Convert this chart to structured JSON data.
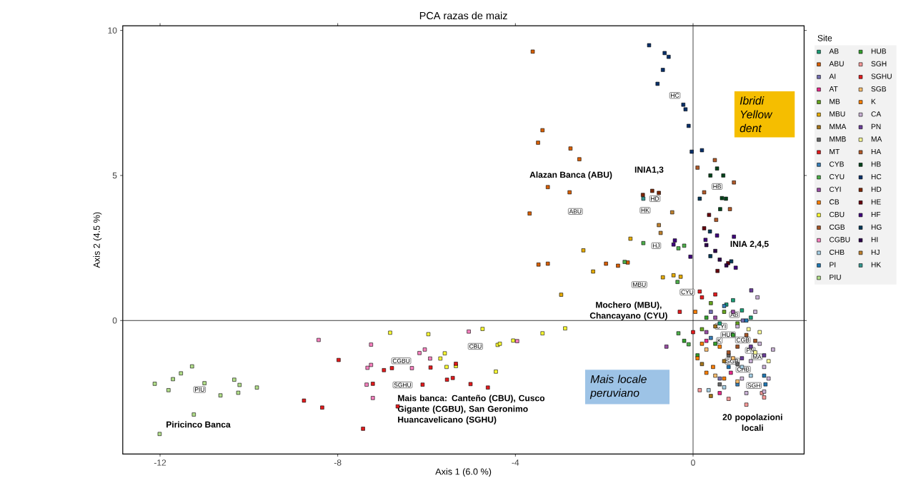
{
  "chart_data": {
    "type": "scatter",
    "title": "PCA razas de maiz",
    "xlabel": "Axis 1 (6.0 %)",
    "ylabel": "Axis 2 (4.5 %)",
    "legend_title": "Site",
    "legend": "right",
    "marker": "square",
    "xlim": [
      -12.84,
      2.5
    ],
    "ylim": [
      -4.6,
      10.16
    ],
    "xticks": [
      -12,
      -8,
      -4,
      0
    ],
    "yticks": [
      0,
      5,
      10
    ],
    "ref_lines": [
      {
        "axis": "x",
        "value": 0
      },
      {
        "axis": "y",
        "value": 0
      }
    ],
    "series": [
      {
        "name": "AB",
        "color": "#1b9e77",
        "x": [
          0.75,
          1.1,
          0.6,
          1.3,
          0.9
        ],
        "values": [
          0.55,
          0.35,
          -0.1,
          0.1,
          0.7
        ]
      },
      {
        "name": "ABU",
        "color": "#d95f02",
        "x": [
          -3.61,
          -3.39,
          -3.49,
          -2.76,
          -2.56,
          -3.27,
          -2.78,
          -3.68,
          -3.48,
          -3.27,
          -1.96,
          -1.69,
          -1.47
        ],
        "values": [
          9.27,
          6.56,
          6.13,
          5.93,
          5.56,
          4.6,
          4.42,
          3.69,
          1.93,
          1.96,
          1.96,
          1.89,
          2.0
        ]
      },
      {
        "name": "AI",
        "color": "#7570b3",
        "x": [
          0.6,
          1.12,
          0.4
        ],
        "values": [
          -2.0,
          0.0,
          0.3
        ]
      },
      {
        "name": "AT",
        "color": "#e7298a",
        "x": [
          0.6,
          0.3,
          0.85
        ],
        "values": [
          -2.5,
          -0.7,
          -1.8
        ]
      },
      {
        "name": "MB",
        "color": "#66a61e",
        "x": [
          0.4,
          0.2,
          0.7,
          1.0
        ],
        "values": [
          0.6,
          -0.3,
          0.3,
          -0.1
        ]
      },
      {
        "name": "MBU",
        "color": "#e6ab02",
        "x": [
          -2.47,
          -2.25,
          -1.41,
          -2.97,
          -0.44,
          -0.28,
          -0.68
        ],
        "values": [
          2.42,
          1.69,
          2.82,
          0.89,
          1.56,
          1.51,
          1.49
        ]
      },
      {
        "name": "MMA",
        "color": "#a6761d",
        "x": [
          0.2,
          0.4,
          0.7,
          0.5
        ],
        "values": [
          -1.5,
          -2.6,
          -1.4,
          -0.2
        ]
      },
      {
        "name": "MMB",
        "color": "#666666",
        "x": [
          0.8,
          1.0,
          0.6
        ],
        "values": [
          -1.2,
          -1.5,
          -2.2
        ]
      },
      {
        "name": "MT",
        "color": "#e41a1c",
        "x": [
          0.15,
          -0.3,
          0.2,
          0.5,
          0.0
        ],
        "values": [
          1.0,
          0.3,
          0.8,
          0.9,
          -0.4
        ]
      },
      {
        "name": "CYB",
        "color": "#377eb8",
        "x": [
          0.4,
          0.7,
          1.0
        ],
        "values": [
          -0.6,
          0.5,
          -2.2
        ]
      },
      {
        "name": "CYU",
        "color": "#4daf4a",
        "x": [
          -1.12,
          -0.33,
          -0.2,
          -1.54,
          -0.35,
          -0.33,
          -0.1
        ],
        "values": [
          2.67,
          2.49,
          2.58,
          2.02,
          1.33,
          -0.44,
          -0.82
        ]
      },
      {
        "name": "CYI",
        "color": "#984ea3",
        "x": [
          0.5,
          0.3,
          0.9,
          -0.6
        ],
        "values": [
          0.1,
          -0.4,
          0.3,
          -0.9
        ]
      },
      {
        "name": "CB",
        "color": "#ff7f00",
        "x": [
          0.05,
          0.3,
          0.7
        ],
        "values": [
          0.3,
          -1.8,
          -2.0
        ]
      },
      {
        "name": "CBU",
        "color": "#ffff33",
        "x": [
          -6.82,
          -5.96,
          -4.74,
          -5.59,
          -5.69,
          -5.55,
          -5.34,
          -4.44,
          -4.4,
          -4.35,
          -4.05,
          -3.39,
          -2.88
        ],
        "values": [
          -0.42,
          -0.47,
          -0.29,
          -1.13,
          -1.31,
          -1.6,
          -1.57,
          -1.76,
          -0.84,
          -0.8,
          -0.69,
          -0.44,
          -0.27
        ]
      },
      {
        "name": "CGB",
        "color": "#a65628",
        "x": [
          1.2,
          1.0,
          1.4,
          0.8
        ],
        "values": [
          -0.5,
          -0.9,
          -0.7,
          -1.1
        ]
      },
      {
        "name": "CGBU",
        "color": "#f781bf",
        "x": [
          -8.43,
          -7.25,
          -7.25,
          -7.33,
          -7.35,
          -7.21,
          -6.33,
          -6.16,
          -6.04,
          -5.92,
          -5.05,
          -3.96
        ],
        "values": [
          -0.67,
          -0.83,
          -1.53,
          -1.63,
          -2.21,
          -2.67,
          -1.64,
          -1.12,
          -1.0,
          -1.31,
          -0.38,
          -0.71
        ]
      },
      {
        "name": "CHB",
        "color": "#a6cee3",
        "x": [
          1.1,
          0.7,
          0.35,
          1.3
        ],
        "values": [
          -1.6,
          -2.3,
          -2.4,
          -1.9
        ]
      },
      {
        "name": "PI",
        "color": "#1f78b4",
        "x": [
          1.63,
          1.6,
          0.8,
          1.2
        ],
        "values": [
          -2.2,
          -1.9,
          -1.6,
          0.0
        ]
      },
      {
        "name": "PIU",
        "color": "#b2df8a",
        "x": [
          -12.12,
          -11.81,
          -11.71,
          -11.53,
          -11.28,
          -11.0,
          -10.33,
          -10.21,
          -9.82,
          -10.24,
          -10.64,
          -11.24,
          -12.01
        ],
        "values": [
          -2.18,
          -2.4,
          -2.02,
          -1.82,
          -1.58,
          -2.16,
          -2.04,
          -2.22,
          -2.31,
          -2.49,
          -2.58,
          -3.24,
          -3.91
        ]
      },
      {
        "name": "HUB",
        "color": "#33a02c",
        "x": [
          0.3,
          0.5,
          -0.2,
          0.9,
          0.1
        ],
        "values": [
          0.1,
          -0.8,
          -0.7,
          -0.5,
          -1.2
        ]
      },
      {
        "name": "SGH",
        "color": "#fb9a99",
        "x": [
          1.55,
          0.8,
          1.6,
          0.15,
          1.2
        ],
        "values": [
          -2.5,
          -2.7,
          -2.65,
          -2.4,
          -2.9
        ]
      },
      {
        "name": "SGHU",
        "color": "#e31a1c",
        "x": [
          -7.98,
          -8.76,
          -8.35,
          -7.43,
          -7.21,
          -6.96,
          -6.78,
          -6.65,
          -6.09,
          -5.91,
          -5.54,
          -5.41,
          -5.34,
          -5.01,
          -4.62
        ],
        "values": [
          -1.36,
          -2.76,
          -3.0,
          -3.73,
          -2.18,
          -1.71,
          -1.64,
          -2.96,
          -2.21,
          -1.62,
          -2.04,
          -1.98,
          -1.49,
          -2.19,
          -2.31
        ]
      },
      {
        "name": "SGB",
        "color": "#fdbf6f",
        "x": [
          0.9,
          0.5,
          0.3,
          1.0
        ],
        "values": [
          -1.3,
          -1.9,
          -1.0,
          -2.1
        ]
      },
      {
        "name": "K",
        "color": "#ff7f00",
        "x": [
          0.2,
          0.1,
          0.6,
          0.45
        ],
        "values": [
          -0.8,
          -1.3,
          -0.9,
          -1.6
        ]
      },
      {
        "name": "CA",
        "color": "#cab2d6",
        "x": [
          1.5,
          1.6,
          1.7,
          1.3,
          1.8,
          1.2,
          1.6,
          1.0,
          1.1,
          1.4,
          1.45
        ],
        "values": [
          -0.8,
          -1.6,
          -2.0,
          -1.4,
          -1.0,
          -2.5,
          -2.45,
          -0.2,
          -2.0,
          0.3,
          0.8
        ]
      },
      {
        "name": "PN",
        "color": "#6a3d9a",
        "x": [
          1.3,
          1.6,
          1.1,
          1.31
        ],
        "values": [
          -0.9,
          -1.2,
          -1.3,
          1.04
        ]
      },
      {
        "name": "MA",
        "color": "#ffff99",
        "x": [
          1.4,
          1.5,
          1.7,
          1.25
        ],
        "values": [
          -1.1,
          -0.4,
          -1.4,
          -0.3
        ]
      },
      {
        "name": "HA",
        "color": "#b15928",
        "x": [
          0.49,
          0.1,
          0.92,
          0.25,
          0.83,
          0.52
        ],
        "values": [
          5.53,
          5.27,
          4.76,
          4.42,
          3.84,
          3.47
        ]
      },
      {
        "name": "HB",
        "color": "#00441b",
        "x": [
          0.54,
          0.68,
          0.39,
          0.65,
          0.74,
          0.61
        ],
        "values": [
          5.24,
          5.0,
          5.0,
          4.22,
          4.2,
          3.84
        ]
      },
      {
        "name": "HC",
        "color": "#08306b",
        "x": [
          -0.99,
          -0.64,
          -0.55,
          -0.68,
          -0.8,
          -0.22,
          -0.17,
          -0.1,
          -0.03,
          0.2
        ],
        "values": [
          9.49,
          9.22,
          9.09,
          8.64,
          8.16,
          7.44,
          7.28,
          6.71,
          5.82,
          5.87
        ]
      },
      {
        "name": "HD",
        "color": "#7f2704",
        "x": [
          -0.92,
          -0.77,
          -1.13
        ],
        "values": [
          4.47,
          4.4,
          4.33
        ]
      },
      {
        "name": "HE",
        "color": "#67000d",
        "x": [
          0.36,
          0.25,
          0.55,
          0.79
        ],
        "values": [
          3.64,
          3.18,
          1.71,
          1.98
        ]
      },
      {
        "name": "HF",
        "color": "#3f007d",
        "x": [
          -0.06,
          -0.41,
          -0.44,
          0.28,
          0.92,
          0.96,
          0.54
        ],
        "values": [
          2.2,
          2.76,
          2.62,
          2.78,
          2.89,
          1.82,
          2.93
        ]
      },
      {
        "name": "HG",
        "color": "#023858",
        "x": [
          0.15,
          0.38,
          0.39,
          0.86
        ],
        "values": [
          4.2,
          3.07,
          2.22,
          2.04
        ]
      },
      {
        "name": "HI",
        "color": "#2d004b",
        "x": [
          0.5,
          0.6,
          0.3,
          0.75
        ],
        "values": [
          2.4,
          2.1,
          2.6,
          1.9
        ]
      },
      {
        "name": "HJ",
        "color": "#bf812d",
        "x": [
          -0.47,
          -0.77,
          -0.73
        ],
        "values": [
          3.73,
          3.29,
          3.02
        ]
      },
      {
        "name": "HK",
        "color": "#35978f",
        "x": [
          -1.12
        ],
        "values": [
          4.2
        ]
      }
    ],
    "annotations": [
      "Alazan Banca (ABU)",
      "INIA1,3",
      "INIA 2,4,5",
      "Mochero (MBU), Chancayano (CYU)",
      "Mais banca: Canteño (CBU), Cusco Gigante (CGBU), San Geronimo Huancavelicano (SGHU)",
      "Piricinco Banca",
      "20 popolazioni locali",
      "Ibridi Yellow dent",
      "Mais locale peruviano",
      {
        "text": "ABU",
        "x": -2.65,
        "y": 3.76
      },
      {
        "text": "CGBU",
        "x": -6.57,
        "y": -1.39
      },
      {
        "text": "CBU",
        "x": -4.9,
        "y": -0.89
      },
      {
        "text": "SGHU",
        "x": -6.54,
        "y": -2.22
      },
      {
        "text": "PIU",
        "x": -11.11,
        "y": -2.38
      },
      {
        "text": "MBU",
        "x": -1.21,
        "y": 1.24
      },
      {
        "text": "CYU",
        "x": -0.13,
        "y": 0.98
      },
      {
        "text": "HK",
        "x": -1.08,
        "y": 3.8
      },
      {
        "text": "HJ",
        "x": -0.83,
        "y": 2.58
      },
      {
        "text": "HD",
        "x": -0.86,
        "y": 4.2
      },
      {
        "text": "HC",
        "x": -0.41,
        "y": 7.76
      },
      {
        "text": "HB",
        "x": 0.54,
        "y": 4.62
      },
      {
        "text": "AB",
        "x": 0.93,
        "y": 0.2
      },
      {
        "text": "HUB",
        "x": 0.79,
        "y": -0.49
      },
      {
        "text": "CYI",
        "x": 0.63,
        "y": -0.2
      },
      {
        "text": "K",
        "x": 0.59,
        "y": -0.69
      },
      {
        "text": "CGB",
        "x": 1.12,
        "y": -0.67
      },
      {
        "text": "PN",
        "x": 1.29,
        "y": -1.03
      },
      {
        "text": "MA",
        "x": 1.44,
        "y": -1.25
      },
      {
        "text": "SGB",
        "x": 0.88,
        "y": -1.4
      },
      {
        "text": "CHB",
        "x": 1.13,
        "y": -1.68
      },
      {
        "text": "SGH",
        "x": 1.37,
        "y": -2.24
      }
    ]
  }
}
